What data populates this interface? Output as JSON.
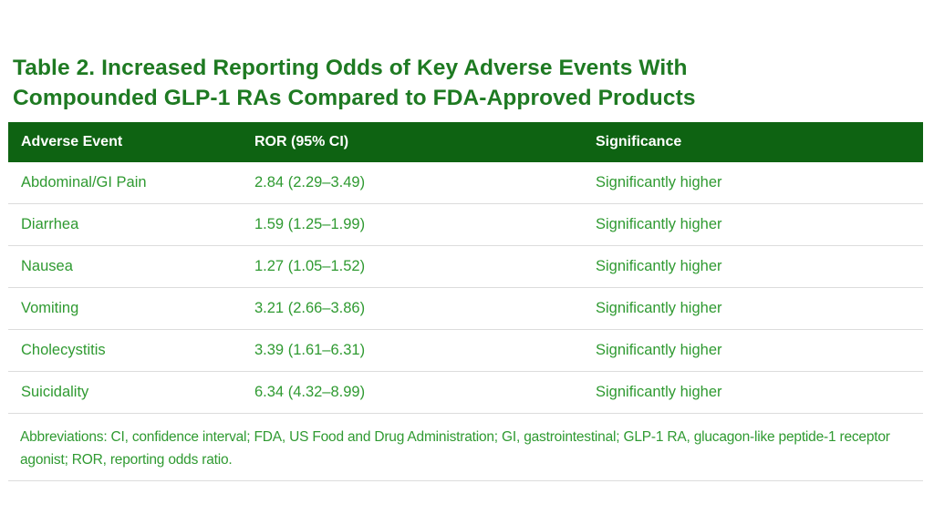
{
  "table": {
    "title_line1": "Table 2. Increased Reporting Odds of Key Adverse Events With",
    "title_line2": "Compounded GLP-1 RAs Compared to FDA-Approved Products",
    "header_color": "#0e6312",
    "text_color": "#2f9a31",
    "title_color": "#1e7a22",
    "columns": [
      "Adverse Event",
      "ROR (95% CI)",
      "Significance"
    ],
    "rows": [
      {
        "event": "Abdominal/GI Pain",
        "ror": "2.84 (2.29–3.49)",
        "significance": "Significantly higher"
      },
      {
        "event": "Diarrhea",
        "ror": "1.59 (1.25–1.99)",
        "significance": "Significantly higher"
      },
      {
        "event": "Nausea",
        "ror": "1.27 (1.05–1.52)",
        "significance": "Significantly higher"
      },
      {
        "event": "Vomiting",
        "ror": "3.21 (2.66–3.86)",
        "significance": "Significantly higher"
      },
      {
        "event": "Cholecystitis",
        "ror": "3.39 (1.61–6.31)",
        "significance": "Significantly higher"
      },
      {
        "event": "Suicidality",
        "ror": "6.34 (4.32–8.99)",
        "significance": "Significantly higher"
      }
    ],
    "footnote": "Abbreviations: CI, confidence interval; FDA, US Food and Drug Administration; GI, gastrointestinal; GLP-1 RA, glucagon-like peptide-1 receptor agonist; ROR, reporting odds ratio."
  }
}
